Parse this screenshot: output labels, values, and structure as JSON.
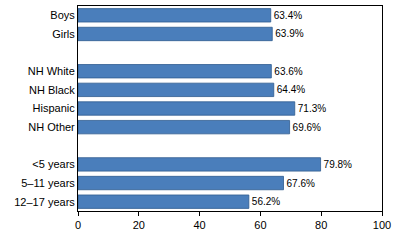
{
  "chart_data": {
    "type": "bar",
    "orientation": "horizontal",
    "categories": [
      "Boys",
      "Girls",
      null,
      "NH White",
      "NH Black",
      "Hispanic",
      "NH Other",
      null,
      "<5 years",
      "5–11 years",
      "12–17 years"
    ],
    "values": [
      63.4,
      63.9,
      null,
      63.6,
      64.4,
      71.3,
      69.6,
      null,
      79.8,
      67.6,
      56.2
    ],
    "value_labels": [
      "63.4%",
      "63.9%",
      null,
      "63.6%",
      "64.4%",
      "71.3%",
      "69.6%",
      null,
      "79.8%",
      "67.6%",
      "56.2%"
    ],
    "data_labels": true,
    "color": "#4a7ebb",
    "xlim": [
      0,
      100
    ],
    "xticks": [
      0,
      20,
      40,
      60,
      80,
      100
    ],
    "grid": false
  }
}
